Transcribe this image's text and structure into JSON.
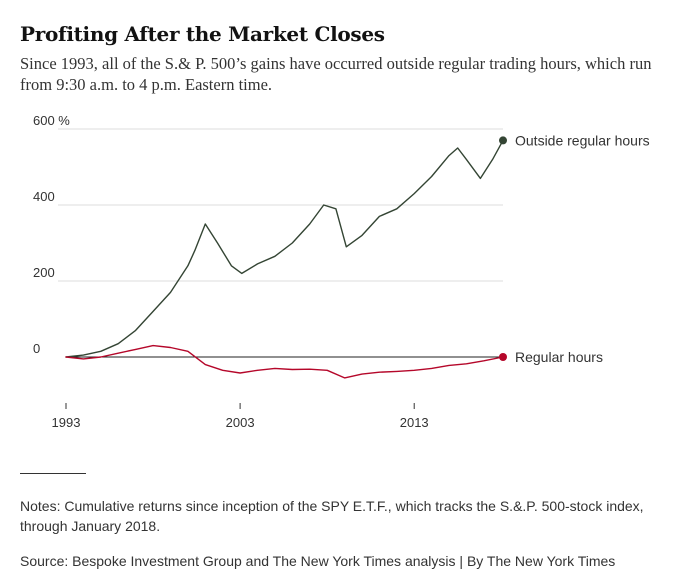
{
  "title": "Profiting After the Market Closes",
  "subtitle": "Since 1993, all of the S.& P. 500’s gains have occurred outside regular trading hours, which run from 9:30 a.m. to 4 p.m. Eastern time.",
  "notes": "Notes: Cumulative returns since inception of the SPY E.T.F., which tracks the S.&.P. 500-stock index, through January 2018.",
  "source": "Source: Bespoke Investment Group and The New York Times analysis | By The New York Times",
  "colors": {
    "outside": "#344534",
    "regular": "#b5072a",
    "grid": "#dddddd",
    "zero": "#222222"
  },
  "chart_data": {
    "type": "line",
    "x_ticks": [
      1993,
      2003,
      2013
    ],
    "x_tick_labels": [
      "1993",
      "2003",
      "2013"
    ],
    "y_ticks": [
      0,
      200,
      400,
      600
    ],
    "y_tick_labels": [
      "0",
      "200",
      "400",
      "600 %"
    ],
    "xlim": [
      1993,
      2018.1
    ],
    "ylim": [
      -60,
      600
    ],
    "grid": true,
    "legend": "direct labels at line ends (right)",
    "series": [
      {
        "name": "Outside regular hours",
        "color": "#344534",
        "x": [
          1993,
          1994,
          1995,
          1996,
          1997,
          1998,
          1999,
          2000,
          2000.4,
          2001,
          2001.7,
          2002.5,
          2003.1,
          2004,
          2005,
          2006,
          2007,
          2007.8,
          2008.5,
          2009.1,
          2010,
          2011,
          2012,
          2013,
          2014,
          2015,
          2015.5,
          2016,
          2016.8,
          2017.5,
          2018.1
        ],
        "y": [
          0,
          5,
          15,
          35,
          70,
          120,
          170,
          240,
          280,
          350,
          300,
          240,
          220,
          245,
          265,
          300,
          350,
          400,
          390,
          290,
          320,
          370,
          390,
          430,
          475,
          530,
          550,
          520,
          470,
          520,
          570
        ]
      },
      {
        "name": "Regular hours",
        "color": "#b5072a",
        "x": [
          1993,
          1994,
          1995,
          1996,
          1997,
          1998,
          1999,
          2000,
          2001,
          2002,
          2003,
          2004,
          2005,
          2006,
          2007,
          2008,
          2009,
          2010,
          2011,
          2012,
          2013,
          2014,
          2015,
          2016,
          2017,
          2018.1
        ],
        "y": [
          0,
          -5,
          0,
          10,
          20,
          30,
          25,
          15,
          -20,
          -35,
          -42,
          -35,
          -30,
          -33,
          -32,
          -35,
          -55,
          -45,
          -40,
          -38,
          -35,
          -30,
          -22,
          -18,
          -10,
          0
        ]
      }
    ]
  }
}
